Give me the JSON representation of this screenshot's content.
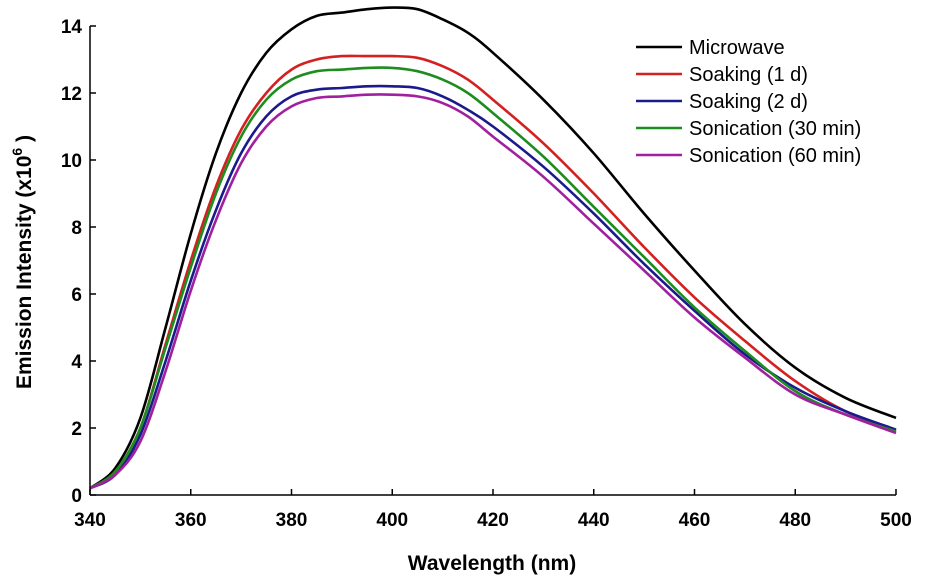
{
  "chart_data": {
    "type": "line",
    "title": "",
    "xlabel": "Wavelength (nm)",
    "ylabel": "Emission Intensity (x10",
    "ylabel_sup": "6",
    "ylabel_suffix": " )",
    "xlim": [
      340,
      500
    ],
    "ylim": [
      0,
      14
    ],
    "xticks": [
      340,
      360,
      380,
      400,
      420,
      440,
      460,
      480,
      500
    ],
    "yticks": [
      0,
      2,
      4,
      6,
      8,
      10,
      12,
      14
    ],
    "legend_position": "top-right",
    "x": [
      340,
      345,
      350,
      355,
      360,
      365,
      370,
      375,
      380,
      385,
      390,
      395,
      400,
      405,
      410,
      415,
      420,
      430,
      440,
      450,
      460,
      470,
      480,
      490,
      500
    ],
    "series": [
      {
        "name": "Microwave",
        "color": "#000000",
        "values": [
          0.2,
          0.8,
          2.3,
          5.0,
          7.8,
          10.2,
          12.0,
          13.2,
          13.9,
          14.3,
          14.4,
          14.5,
          14.55,
          14.5,
          14.2,
          13.8,
          13.2,
          11.8,
          10.2,
          8.4,
          6.7,
          5.1,
          3.8,
          2.9,
          2.3
        ]
      },
      {
        "name": "Soaking (1 d)",
        "color": "#d42020",
        "values": [
          0.2,
          0.7,
          2.0,
          4.5,
          7.0,
          9.2,
          10.9,
          12.0,
          12.7,
          13.0,
          13.1,
          13.1,
          13.1,
          13.05,
          12.8,
          12.4,
          11.8,
          10.5,
          9.0,
          7.4,
          5.9,
          4.6,
          3.4,
          2.5,
          1.95
        ]
      },
      {
        "name": "Soaking (2 d)",
        "color": "#1a1a8c",
        "values": [
          0.2,
          0.6,
          1.8,
          4.0,
          6.4,
          8.5,
          10.2,
          11.3,
          11.9,
          12.1,
          12.15,
          12.2,
          12.2,
          12.15,
          11.9,
          11.5,
          11.0,
          9.8,
          8.4,
          6.9,
          5.5,
          4.2,
          3.2,
          2.5,
          1.95
        ]
      },
      {
        "name": "Sonication (30 min)",
        "color": "#1e8c1e",
        "values": [
          0.2,
          0.7,
          2.0,
          4.4,
          6.8,
          9.0,
          10.7,
          11.8,
          12.4,
          12.65,
          12.7,
          12.75,
          12.75,
          12.65,
          12.4,
          12.0,
          11.4,
          10.1,
          8.6,
          7.1,
          5.6,
          4.3,
          3.1,
          2.4,
          1.9
        ]
      },
      {
        "name": "Sonication (60 min)",
        "color": "#a020a0",
        "values": [
          0.2,
          0.6,
          1.6,
          3.7,
          6.1,
          8.2,
          9.9,
          11.0,
          11.6,
          11.85,
          11.9,
          11.95,
          11.95,
          11.9,
          11.7,
          11.3,
          10.7,
          9.5,
          8.1,
          6.7,
          5.3,
          4.1,
          3.0,
          2.4,
          1.85
        ]
      }
    ]
  }
}
